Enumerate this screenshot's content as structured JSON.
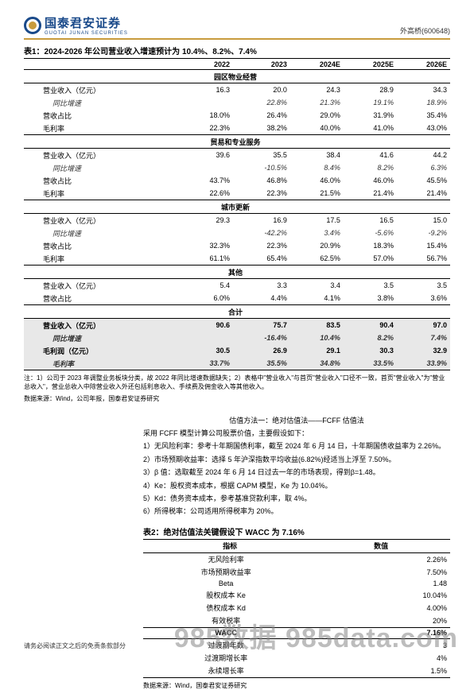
{
  "header": {
    "company_cn": "国泰君安证券",
    "company_en": "GUOTAI JUNAN SECURITIES",
    "ticker": "外高桥(600648)"
  },
  "table1": {
    "title": "表1：2024-2026 年公司营业收入增速预计为 10.4%、8.2%、7.4%",
    "columns": [
      "",
      "2022",
      "2023",
      "2024E",
      "2025E",
      "2026E"
    ],
    "sections": [
      {
        "name": "园区物业经营",
        "rows": [
          {
            "label": "营业收入（亿元）",
            "v": [
              "16.3",
              "20.0",
              "24.3",
              "28.9",
              "34.3"
            ]
          },
          {
            "label": "同比增速",
            "v": [
              "",
              "22.8%",
              "21.3%",
              "19.1%",
              "18.9%"
            ],
            "ital": true
          },
          {
            "label": "营收占比",
            "v": [
              "18.0%",
              "26.4%",
              "29.0%",
              "31.9%",
              "35.4%"
            ]
          },
          {
            "label": "毛利率",
            "v": [
              "22.3%",
              "38.2%",
              "40.0%",
              "41.0%",
              "43.0%"
            ]
          }
        ]
      },
      {
        "name": "贸易和专业服务",
        "rows": [
          {
            "label": "营业收入（亿元）",
            "v": [
              "39.6",
              "35.5",
              "38.4",
              "41.6",
              "44.2"
            ]
          },
          {
            "label": "同比增速",
            "v": [
              "",
              "-10.5%",
              "8.4%",
              "8.2%",
              "6.3%"
            ],
            "ital": true
          },
          {
            "label": "营收占比",
            "v": [
              "43.7%",
              "46.8%",
              "46.0%",
              "46.0%",
              "45.5%"
            ]
          },
          {
            "label": "毛利率",
            "v": [
              "22.6%",
              "22.3%",
              "21.5%",
              "21.4%",
              "21.4%"
            ]
          }
        ]
      },
      {
        "name": "城市更新",
        "rows": [
          {
            "label": "营业收入（亿元）",
            "v": [
              "29.3",
              "16.9",
              "17.5",
              "16.5",
              "15.0"
            ]
          },
          {
            "label": "同比增速",
            "v": [
              "",
              "-42.2%",
              "3.4%",
              "-5.6%",
              "-9.2%"
            ],
            "ital": true
          },
          {
            "label": "营收占比",
            "v": [
              "32.3%",
              "22.3%",
              "20.9%",
              "18.3%",
              "15.4%"
            ]
          },
          {
            "label": "毛利率",
            "v": [
              "61.1%",
              "65.4%",
              "62.5%",
              "57.0%",
              "56.7%"
            ]
          }
        ]
      },
      {
        "name": "其他",
        "rows": [
          {
            "label": "营业收入（亿元）",
            "v": [
              "5.4",
              "3.3",
              "3.4",
              "3.5",
              "3.5"
            ]
          },
          {
            "label": "营收占比",
            "v": [
              "6.0%",
              "4.4%",
              "4.1%",
              "3.8%",
              "3.6%"
            ]
          }
        ]
      },
      {
        "name": "合计",
        "gray": true,
        "rows": [
          {
            "label": "营业收入（亿元）",
            "v": [
              "90.6",
              "75.7",
              "83.5",
              "90.4",
              "97.0"
            ],
            "bold": true
          },
          {
            "label": "同比增速",
            "v": [
              "",
              "-16.4%",
              "10.4%",
              "8.2%",
              "7.4%"
            ],
            "ital": true,
            "bold": true
          },
          {
            "label": "毛利润（亿元）",
            "v": [
              "30.5",
              "26.9",
              "29.1",
              "30.3",
              "32.9"
            ],
            "bold": true
          },
          {
            "label": "毛利率",
            "v": [
              "33.7%",
              "35.5%",
              "34.8%",
              "33.5%",
              "33.9%"
            ],
            "ital": true,
            "bold": true
          }
        ]
      }
    ],
    "footnote": "注：1）公司于 2023 年调整业务板块分类，故 2022 年同比增速数据缺失；2）表格中\"营业收入\"与首页\"营业收入\"口径不一致，首页\"营业收入\"为\"营业总收入\"，营业总收入中除营业收入外还包括利息收入、手续费及佣金收入等其他收入。",
    "source": "数据来源：Wind，公司年报，国泰君安证券研究"
  },
  "body": {
    "method_title": "估值方法一：绝对估值法——FCFF 估值法",
    "intro": "采用 FCFF 模型计算公司股票价值，主要假设如下：",
    "items": [
      "1）无风险利率：参考十年期国债利率，截至 2024 年 6 月 14 日，十年期国债收益率为 2.26%。",
      "2）市场预期收益率：选择 5 年沪深指数平均收益(6.82%)经适当上浮至 7.50%。",
      "3）β 值：选取截至 2024 年 6 月 14 日过去一年的市场表现，得到β=1.48。",
      "4）Ke：股权资本成本，根据 CAPM 模型，Ke 为 10.04%。",
      "5）Kd：债务资本成本，参考基准贷款利率，取 4%。",
      "6）所得税率：公司适用所得税率为 20%。"
    ]
  },
  "table2": {
    "title": "表2：绝对估值法关键假设下 WACC 为 7.16%",
    "columns": [
      "指标",
      "数值"
    ],
    "rows": [
      {
        "k": "无风险利率",
        "v": "2.26%"
      },
      {
        "k": "市场预期收益率",
        "v": "7.50%"
      },
      {
        "k": "Beta",
        "v": "1.48"
      },
      {
        "k": "股权成本 Ke",
        "v": "10.04%"
      },
      {
        "k": "债权成本 Kd",
        "v": "4.00%"
      },
      {
        "k": "有效税率",
        "v": "20%"
      },
      {
        "k": "WACC",
        "v": "7.16%",
        "bold": true,
        "border": true
      },
      {
        "k": "过渡期年数",
        "v": "3"
      },
      {
        "k": "过渡期增长率",
        "v": "4%"
      },
      {
        "k": "永续增长率",
        "v": "1.5%"
      }
    ],
    "source": "数据来源：Wind，国泰君安证券研究"
  },
  "footer": {
    "disclaimer": "请务必阅读正文之后的免责条款部分",
    "watermark": "985数据 985data.com"
  }
}
